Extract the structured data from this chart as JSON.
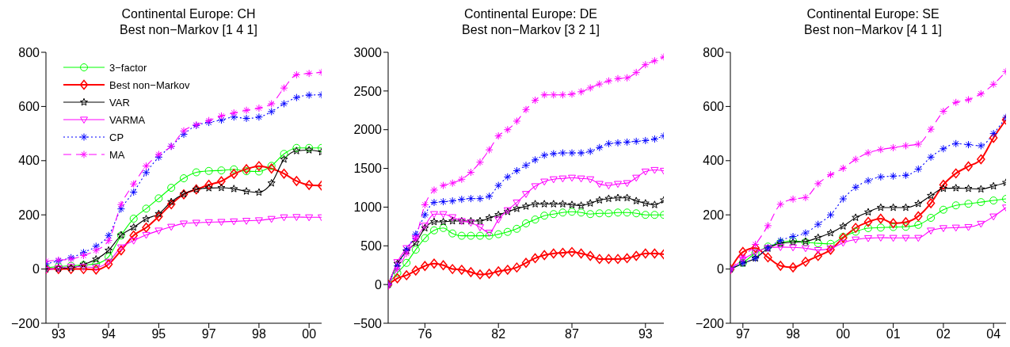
{
  "chart_data": [
    {
      "type": "line",
      "title": "Continental Europe: CH",
      "subtitle": "Best non−Markov [1  4  1]",
      "legend": "top left",
      "grid": false,
      "categories": [
        null,
        "93",
        null,
        null,
        null,
        "94",
        null,
        null,
        null,
        "95",
        null,
        null,
        null,
        "97",
        null,
        null,
        null,
        "98",
        null,
        null,
        null,
        "00",
        null
      ],
      "ylim": [
        -200,
        800
      ],
      "yticks": [
        -200,
        0,
        200,
        400,
        600,
        800
      ],
      "series": [
        {
          "name": "3−factor",
          "color": "#00ff00",
          "marker": "circle",
          "line_style": "solid",
          "values": [
            5,
            9,
            12,
            15,
            19,
            45,
            124,
            186,
            223,
            261,
            300,
            335,
            357,
            362,
            364,
            368,
            361,
            360,
            381,
            425,
            447,
            447,
            447
          ]
        },
        {
          "name": "Best non−Markov",
          "color": "#ff0000",
          "marker": "diamond",
          "line_style": "solid",
          "values": [
            0,
            0,
            0,
            0,
            -2,
            18,
            69,
            124,
            153,
            194,
            239,
            276,
            294,
            311,
            324,
            351,
            369,
            380,
            371,
            352,
            325,
            310,
            308
          ]
        },
        {
          "name": "VAR",
          "color": "#000000",
          "marker": "star",
          "line_style": "solid",
          "values": [
            0,
            2,
            4,
            17,
            36,
            69,
            125,
            154,
            185,
            204,
            248,
            277,
            294,
            299,
            300,
            296,
            287,
            283,
            317,
            405,
            436,
            439,
            432
          ]
        },
        {
          "name": "VARMA",
          "color": "#ff00ff",
          "marker": "triangle",
          "line_style": "solid",
          "values": [
            -3,
            3,
            9,
            8,
            6,
            27,
            80,
            105,
            126,
            142,
            156,
            168,
            171,
            173,
            174,
            176,
            178,
            180,
            185,
            191,
            192,
            191,
            191
          ]
        },
        {
          "name": "CP",
          "color": "#0000ff",
          "marker": "cross",
          "line_style": "dotted",
          "values": [
            19,
            30,
            42,
            61,
            84,
            124,
            222,
            284,
            356,
            413,
            453,
            497,
            530,
            541,
            550,
            561,
            556,
            561,
            581,
            610,
            633,
            642,
            643
          ]
        },
        {
          "name": "MA",
          "color": "#ff00ff",
          "marker": "cross",
          "line_style": "dashed",
          "values": [
            29,
            33,
            37,
            50,
            69,
            105,
            238,
            314,
            380,
            423,
            453,
            510,
            532,
            548,
            565,
            576,
            586,
            594,
            610,
            668,
            717,
            722,
            726
          ]
        }
      ]
    },
    {
      "type": "line",
      "title": "Continental Europe: DE",
      "subtitle": "Best non−Markov [3  2  1]",
      "legend": false,
      "grid": false,
      "categories": [
        null,
        null,
        null,
        null,
        "76",
        null,
        null,
        null,
        null,
        null,
        null,
        null,
        "82",
        null,
        null,
        null,
        null,
        null,
        null,
        null,
        "87",
        null,
        null,
        null,
        null,
        null,
        null,
        null,
        "93",
        null,
        null
      ],
      "ylim": [
        -500,
        3000
      ],
      "yticks": [
        -500,
        0,
        500,
        1000,
        1500,
        2000,
        2500,
        3000
      ],
      "series": [
        {
          "color": "#00ff00",
          "marker": "circle",
          "line_style": "solid",
          "values": [
            0,
            150,
            280,
            450,
            600,
            700,
            730,
            660,
            630,
            630,
            630,
            630,
            650,
            680,
            720,
            790,
            840,
            890,
            910,
            930,
            940,
            930,
            910,
            920,
            920,
            930,
            930,
            920,
            900,
            900,
            900
          ]
        },
        {
          "color": "#ff0000",
          "marker": "diamond",
          "line_style": "solid",
          "values": [
            0,
            80,
            120,
            180,
            240,
            270,
            250,
            200,
            190,
            160,
            130,
            140,
            170,
            190,
            220,
            280,
            340,
            380,
            400,
            410,
            420,
            400,
            370,
            330,
            330,
            330,
            340,
            370,
            400,
            400,
            390
          ]
        },
        {
          "color": "#000000",
          "marker": "star",
          "line_style": "solid",
          "values": [
            0,
            270,
            430,
            540,
            730,
            810,
            810,
            820,
            820,
            820,
            820,
            860,
            900,
            940,
            980,
            1010,
            1040,
            1040,
            1040,
            1040,
            1030,
            1020,
            1050,
            1090,
            1110,
            1120,
            1120,
            1080,
            1050,
            1030,
            1090
          ]
        },
        {
          "color": "#ff00ff",
          "marker": "triangle",
          "line_style": "solid",
          "values": [
            -20,
            290,
            470,
            600,
            760,
            910,
            910,
            870,
            820,
            800,
            740,
            670,
            840,
            960,
            1060,
            1170,
            1270,
            1330,
            1360,
            1370,
            1380,
            1370,
            1360,
            1300,
            1280,
            1300,
            1310,
            1380,
            1460,
            1480,
            1470
          ]
        },
        {
          "color": "#0000ff",
          "marker": "cross",
          "line_style": "dotted",
          "values": [
            0,
            240,
            450,
            650,
            900,
            1060,
            1070,
            1080,
            1100,
            1110,
            1110,
            1140,
            1280,
            1390,
            1470,
            1540,
            1610,
            1670,
            1690,
            1700,
            1700,
            1700,
            1720,
            1770,
            1820,
            1830,
            1840,
            1850,
            1860,
            1880,
            1920
          ]
        },
        {
          "color": "#ff00ff",
          "marker": "cross",
          "line_style": "dashed",
          "values": [
            0,
            200,
            400,
            600,
            1030,
            1220,
            1280,
            1310,
            1360,
            1450,
            1580,
            1740,
            1920,
            2000,
            2110,
            2260,
            2380,
            2450,
            2450,
            2450,
            2460,
            2490,
            2540,
            2590,
            2630,
            2660,
            2670,
            2740,
            2840,
            2890,
            2940
          ]
        }
      ]
    },
    {
      "type": "line",
      "title": "Continental Europe: SE",
      "subtitle": "Best non−Markov [4  1  1]",
      "legend": false,
      "grid": false,
      "categories": [
        null,
        "97",
        null,
        null,
        null,
        "98",
        null,
        null,
        null,
        "00",
        null,
        null,
        null,
        "01",
        null,
        null,
        null,
        "02",
        null,
        null,
        null,
        "04",
        null
      ],
      "ylim": [
        -200,
        800
      ],
      "yticks": [
        -200,
        0,
        200,
        400,
        600,
        800
      ],
      "series": [
        {
          "color": "#00ff00",
          "marker": "circle",
          "line_style": "solid",
          "values": [
            0,
            23,
            59,
            83,
            97,
            104,
            99,
            95,
            93,
            119,
            138,
            151,
            153,
            155,
            156,
            163,
            189,
            219,
            235,
            241,
            247,
            253,
            259
          ]
        },
        {
          "color": "#ff0000",
          "marker": "diamond",
          "line_style": "solid",
          "values": [
            0,
            63,
            78,
            43,
            12,
            6,
            27,
            48,
            71,
            115,
            152,
            174,
            186,
            169,
            173,
            195,
            243,
            311,
            353,
            379,
            405,
            484,
            551
          ]
        },
        {
          "color": "#000000",
          "marker": "star",
          "line_style": "solid",
          "values": [
            0,
            21,
            40,
            76,
            95,
            99,
            102,
            116,
            133,
            158,
            190,
            210,
            227,
            227,
            227,
            241,
            271,
            297,
            299,
            297,
            295,
            306,
            319
          ]
        },
        {
          "color": "#ff00ff",
          "marker": "triangle",
          "line_style": "solid",
          "values": [
            -5,
            35,
            61,
            78,
            81,
            80,
            77,
            70,
            76,
            97,
            109,
            114,
            116,
            115,
            115,
            115,
            142,
            151,
            153,
            155,
            167,
            194,
            227
          ]
        },
        {
          "color": "#0000ff",
          "marker": "cross",
          "line_style": "dotted",
          "values": [
            0,
            22,
            40,
            78,
            105,
            120,
            133,
            165,
            200,
            259,
            302,
            326,
            340,
            343,
            346,
            369,
            413,
            444,
            463,
            459,
            455,
            500,
            560
          ]
        },
        {
          "color": "#ff00ff",
          "marker": "cross",
          "line_style": "dashed",
          "values": [
            0,
            43,
            91,
            160,
            239,
            258,
            264,
            315,
            348,
            372,
            405,
            429,
            441,
            448,
            455,
            461,
            516,
            582,
            615,
            625,
            647,
            682,
            729
          ]
        }
      ]
    }
  ]
}
